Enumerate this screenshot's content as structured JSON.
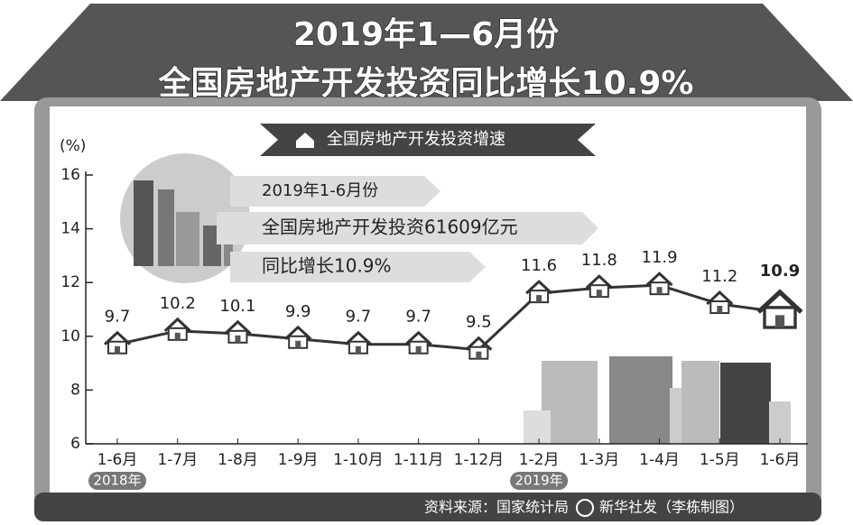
{
  "chart_data": {
    "type": "line",
    "title_lines": [
      "2019年1—6月份",
      "全国房地产开发投资同比增长10.9%"
    ],
    "subtitle": "全国房地产开发投资增速",
    "y_label": "(%)",
    "info": [
      "2019年1-6月份",
      "全国房地产开发投资61609亿元",
      "同比增长10.9%"
    ],
    "categories": [
      "1-6月",
      "1-7月",
      "1-8月",
      "1-9月",
      "1-10月",
      "1-11月",
      "1-12月",
      "1-2月",
      "1-3月",
      "1-4月",
      "1-5月",
      "1-6月"
    ],
    "year_labels": [
      "2018年",
      null,
      null,
      null,
      null,
      null,
      null,
      "2019年",
      null,
      null,
      null,
      null
    ],
    "values": [
      9.7,
      10.2,
      10.1,
      9.9,
      9.7,
      9.7,
      9.5,
      11.6,
      11.8,
      11.9,
      11.2,
      10.9
    ],
    "color": "#333333",
    "ylim": [
      6,
      16
    ],
    "yticks": [
      6,
      8,
      10,
      12,
      14,
      16
    ],
    "source": "资料来源：国家统计局",
    "credit": "新华社发（李栋制图）"
  }
}
